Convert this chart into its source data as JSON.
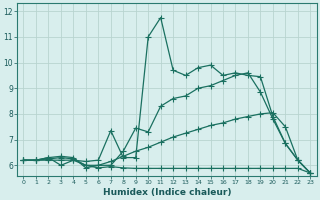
{
  "xlabel": "Humidex (Indice chaleur)",
  "background_color": "#d8eeed",
  "grid_color": "#b8d4d0",
  "line_color": "#1a7060",
  "xlim": [
    -0.5,
    23.5
  ],
  "ylim": [
    5.6,
    12.3
  ],
  "xticks": [
    0,
    1,
    2,
    3,
    4,
    5,
    6,
    7,
    8,
    9,
    10,
    11,
    12,
    13,
    14,
    15,
    16,
    17,
    18,
    19,
    20,
    21,
    22,
    23
  ],
  "yticks": [
    6,
    7,
    8,
    9,
    10,
    11,
    12
  ],
  "series": [
    {
      "x": [
        0,
        1,
        2,
        3,
        4,
        5,
        6,
        7,
        8,
        9,
        10,
        11,
        12,
        13,
        14,
        15,
        16,
        17,
        18,
        19,
        20,
        21,
        22,
        23
      ],
      "y": [
        6.2,
        6.2,
        6.3,
        6.0,
        6.2,
        6.15,
        6.2,
        7.35,
        6.3,
        6.3,
        11.0,
        11.75,
        9.7,
        9.5,
        9.8,
        9.9,
        9.5,
        9.6,
        9.5,
        9.45,
        7.9,
        6.85,
        6.2,
        5.7
      ],
      "marker": "+",
      "markersize": 4,
      "linewidth": 0.9
    },
    {
      "x": [
        0,
        1,
        2,
        3,
        4,
        5,
        6,
        7,
        8,
        9,
        10,
        11,
        12,
        13,
        14,
        15,
        16,
        17,
        18,
        19,
        20,
        21,
        22,
        23
      ],
      "y": [
        6.2,
        6.2,
        6.3,
        6.35,
        6.3,
        5.9,
        6.0,
        6.0,
        6.55,
        7.45,
        7.3,
        8.3,
        8.6,
        8.7,
        9.0,
        9.1,
        9.3,
        9.5,
        9.6,
        8.85,
        7.8,
        6.85,
        6.2,
        5.7
      ],
      "marker": "+",
      "markersize": 4,
      "linewidth": 0.9
    },
    {
      "x": [
        0,
        1,
        2,
        3,
        4,
        5,
        6,
        7,
        8,
        9,
        10,
        11,
        12,
        13,
        14,
        15,
        16,
        17,
        18,
        19,
        20,
        21,
        22,
        23
      ],
      "y": [
        6.2,
        6.2,
        6.25,
        6.3,
        6.25,
        6.0,
        6.0,
        6.15,
        6.35,
        6.55,
        6.7,
        6.9,
        7.1,
        7.25,
        7.4,
        7.55,
        7.65,
        7.8,
        7.9,
        8.0,
        8.05,
        7.5,
        6.2,
        5.7
      ],
      "marker": "+",
      "markersize": 4,
      "linewidth": 0.9
    },
    {
      "x": [
        0,
        1,
        2,
        3,
        4,
        5,
        6,
        7,
        8,
        9,
        10,
        11,
        12,
        13,
        14,
        15,
        16,
        17,
        18,
        19,
        20,
        21,
        22,
        23
      ],
      "y": [
        6.2,
        6.2,
        6.2,
        6.2,
        6.2,
        6.0,
        5.9,
        5.95,
        5.9,
        5.88,
        5.88,
        5.88,
        5.88,
        5.88,
        5.88,
        5.88,
        5.88,
        5.88,
        5.88,
        5.88,
        5.88,
        5.88,
        5.88,
        5.7
      ],
      "marker": "+",
      "markersize": 4,
      "linewidth": 0.9
    }
  ]
}
